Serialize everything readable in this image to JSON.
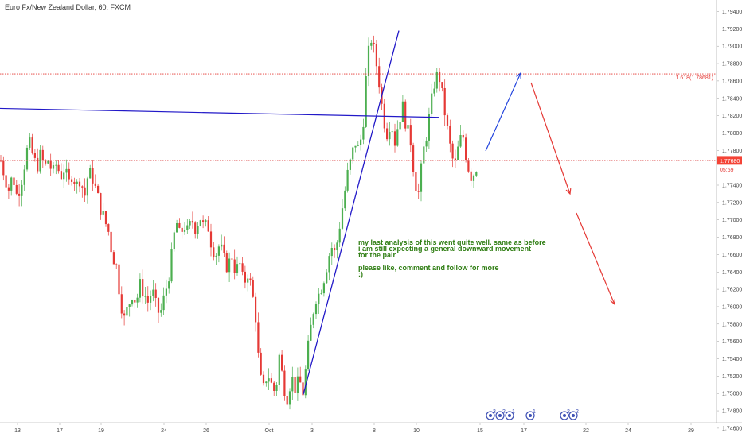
{
  "chart_data": {
    "type": "candlestick",
    "title": "Euro Fx/New Zealand Dollar, 60, FXCM",
    "y_ticks": [
      1.746,
      1.748,
      1.75,
      1.752,
      1.754,
      1.756,
      1.758,
      1.76,
      1.762,
      1.764,
      1.766,
      1.768,
      1.77,
      1.772,
      1.774,
      1.776,
      1.778,
      1.78,
      1.782,
      1.784,
      1.786,
      1.788,
      1.79,
      1.792,
      1.794
    ],
    "y_tick_labels": [
      "1.74600",
      "1.74800",
      "1.75000",
      "1.75200",
      "1.75400",
      "1.75600",
      "1.75800",
      "1.76000",
      "1.76200",
      "1.76400",
      "1.76600",
      "1.76800",
      "1.77000",
      "1.77200",
      "1.77400",
      "1.77600",
      "1.77800",
      "1.78000",
      "1.78200",
      "1.78400",
      "1.78600",
      "1.78800",
      "1.79000",
      "1.79200",
      "1.79400"
    ],
    "x_tick_labels": [
      "13",
      "17",
      "19",
      "24",
      "26",
      "Oct",
      "3",
      "8",
      "10",
      "15",
      "17",
      "22",
      "24",
      "29"
    ],
    "current_price": "1.77680",
    "countdown": "05:59",
    "fib_label": "1.618(1.78681)",
    "close_path": [
      {
        "t": 0,
        "p": 1.7768
      },
      {
        "t": 5,
        "p": 1.775
      },
      {
        "t": 10,
        "p": 1.7735
      },
      {
        "t": 15,
        "p": 1.7752
      },
      {
        "t": 20,
        "p": 1.7728
      },
      {
        "t": 25,
        "p": 1.774
      },
      {
        "t": 30,
        "p": 1.7765
      },
      {
        "t": 35,
        "p": 1.779
      },
      {
        "t": 40,
        "p": 1.7775
      },
      {
        "t": 45,
        "p": 1.776
      },
      {
        "t": 50,
        "p": 1.7775
      },
      {
        "t": 55,
        "p": 1.776
      },
      {
        "t": 60,
        "p": 1.777
      },
      {
        "t": 65,
        "p": 1.7752
      },
      {
        "t": 70,
        "p": 1.7765
      },
      {
        "t": 75,
        "p": 1.775
      },
      {
        "t": 80,
        "p": 1.776
      },
      {
        "t": 85,
        "p": 1.774
      },
      {
        "t": 90,
        "p": 1.7755
      },
      {
        "t": 95,
        "p": 1.7738
      },
      {
        "t": 100,
        "p": 1.775
      },
      {
        "t": 105,
        "p": 1.7725
      },
      {
        "t": 110,
        "p": 1.7755
      },
      {
        "t": 115,
        "p": 1.775
      },
      {
        "t": 120,
        "p": 1.7732
      },
      {
        "t": 125,
        "p": 1.7715
      },
      {
        "t": 130,
        "p": 1.77
      },
      {
        "t": 135,
        "p": 1.7688
      },
      {
        "t": 140,
        "p": 1.766
      },
      {
        "t": 145,
        "p": 1.7648
      },
      {
        "t": 150,
        "p": 1.761
      },
      {
        "t": 155,
        "p": 1.7585
      },
      {
        "t": 160,
        "p": 1.76
      },
      {
        "t": 165,
        "p": 1.7615
      },
      {
        "t": 170,
        "p": 1.7605
      },
      {
        "t": 175,
        "p": 1.7625
      },
      {
        "t": 180,
        "p": 1.7615
      },
      {
        "t": 185,
        "p": 1.7605
      },
      {
        "t": 190,
        "p": 1.762
      },
      {
        "t": 195,
        "p": 1.76
      },
      {
        "t": 200,
        "p": 1.759
      },
      {
        "t": 205,
        "p": 1.761
      },
      {
        "t": 210,
        "p": 1.763
      },
      {
        "t": 215,
        "p": 1.766
      },
      {
        "t": 220,
        "p": 1.77
      },
      {
        "t": 225,
        "p": 1.768
      },
      {
        "t": 230,
        "p": 1.7695
      },
      {
        "t": 235,
        "p": 1.7685
      },
      {
        "t": 240,
        "p": 1.77
      },
      {
        "t": 245,
        "p": 1.769
      },
      {
        "t": 250,
        "p": 1.7705
      },
      {
        "t": 255,
        "p": 1.769
      },
      {
        "t": 260,
        "p": 1.7695
      },
      {
        "t": 265,
        "p": 1.767
      },
      {
        "t": 270,
        "p": 1.766
      },
      {
        "t": 275,
        "p": 1.7672
      },
      {
        "t": 280,
        "p": 1.7655
      },
      {
        "t": 285,
        "p": 1.7645
      },
      {
        "t": 290,
        "p": 1.766
      },
      {
        "t": 295,
        "p": 1.764
      },
      {
        "t": 300,
        "p": 1.765
      },
      {
        "t": 305,
        "p": 1.7625
      },
      {
        "t": 310,
        "p": 1.764
      },
      {
        "t": 315,
        "p": 1.762
      },
      {
        "t": 320,
        "p": 1.759
      },
      {
        "t": 325,
        "p": 1.752
      },
      {
        "t": 330,
        "p": 1.7505
      },
      {
        "t": 335,
        "p": 1.7525
      },
      {
        "t": 340,
        "p": 1.751
      },
      {
        "t": 345,
        "p": 1.75
      },
      {
        "t": 350,
        "p": 1.7545
      },
      {
        "t": 355,
        "p": 1.751
      },
      {
        "t": 360,
        "p": 1.7495
      },
      {
        "t": 365,
        "p": 1.752
      },
      {
        "t": 370,
        "p": 1.7505
      },
      {
        "t": 375,
        "p": 1.7515
      },
      {
        "t": 380,
        "p": 1.75
      },
      {
        "t": 385,
        "p": 1.7545
      },
      {
        "t": 390,
        "p": 1.758
      },
      {
        "t": 395,
        "p": 1.761
      },
      {
        "t": 400,
        "p": 1.7615
      },
      {
        "t": 405,
        "p": 1.763
      },
      {
        "t": 410,
        "p": 1.765
      },
      {
        "t": 415,
        "p": 1.767
      },
      {
        "t": 420,
        "p": 1.766
      },
      {
        "t": 425,
        "p": 1.769
      },
      {
        "t": 430,
        "p": 1.772
      },
      {
        "t": 435,
        "p": 1.775
      },
      {
        "t": 440,
        "p": 1.777
      },
      {
        "t": 445,
        "p": 1.779
      },
      {
        "t": 450,
        "p": 1.778
      },
      {
        "t": 455,
        "p": 1.781
      },
      {
        "t": 460,
        "p": 1.788
      },
      {
        "t": 465,
        "p": 1.791
      },
      {
        "t": 470,
        "p": 1.789
      },
      {
        "t": 475,
        "p": 1.786
      },
      {
        "t": 480,
        "p": 1.782
      },
      {
        "t": 485,
        "p": 1.78
      },
      {
        "t": 490,
        "p": 1.7815
      },
      {
        "t": 495,
        "p": 1.779
      },
      {
        "t": 500,
        "p": 1.7815
      },
      {
        "t": 505,
        "p": 1.783
      },
      {
        "t": 510,
        "p": 1.7805
      },
      {
        "t": 515,
        "p": 1.779
      },
      {
        "t": 520,
        "p": 1.7745
      },
      {
        "t": 525,
        "p": 1.773
      },
      {
        "t": 530,
        "p": 1.7775
      },
      {
        "t": 535,
        "p": 1.78
      },
      {
        "t": 540,
        "p": 1.783
      },
      {
        "t": 545,
        "p": 1.786
      },
      {
        "t": 550,
        "p": 1.787
      },
      {
        "t": 555,
        "p": 1.784
      },
      {
        "t": 560,
        "p": 1.781
      },
      {
        "t": 565,
        "p": 1.778
      },
      {
        "t": 570,
        "p": 1.776
      },
      {
        "t": 575,
        "p": 1.7785
      },
      {
        "t": 580,
        "p": 1.78
      },
      {
        "t": 585,
        "p": 1.777
      },
      {
        "t": 590,
        "p": 1.775
      },
      {
        "t": 595,
        "p": 1.7755
      },
      {
        "t": 600,
        "p": 1.7768
      }
    ],
    "drawings": {
      "horizontal_line_color": "#2219c8",
      "trendline_color": "#2219c8",
      "arrow_up_color": "#2244dd",
      "arrow_down_color": "#e53935",
      "fib_line_color": "#e53935",
      "up_candle_color": "#4caf50",
      "down_candle_color": "#e53935"
    }
  },
  "annotation": {
    "line1": "my last analysis of this went quite well. same as before",
    "line2": "i am still expecting a general downward movement",
    "line3": "for the pair",
    "line4": "please like, comment and follow for more",
    "line5": ":)"
  },
  "event_markers": [
    "3",
    "2",
    "1",
    "1",
    "2",
    "2"
  ]
}
